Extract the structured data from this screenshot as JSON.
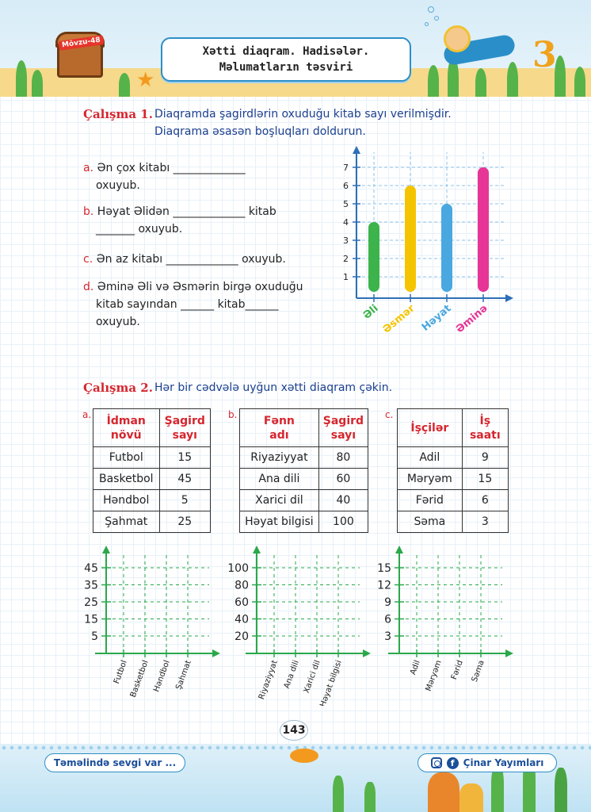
{
  "header": {
    "topic_tag": "Mövzu-48",
    "title_line1": "Xətti diaqram. Hadisələr.",
    "title_line2": "Məlumatların təsviri"
  },
  "exercise1": {
    "title": "Çalışma 1.",
    "text_line1": "Diaqramda şagirdlərin oxuduğu kitab sayı verilmişdir.",
    "text_line2": "Diaqrama əsasən boşluqları doldurun.",
    "questions": [
      {
        "letter": "a.",
        "line1": "Ən çox kitabı _____________",
        "line2": "oxuyub."
      },
      {
        "letter": "b.",
        "line1": "Həyat Əlidən _____________ kitab",
        "line2": "_______ oxuyub."
      },
      {
        "letter": "c.",
        "line1": "Ən az kitabı _____________ oxuyub.",
        "line2": ""
      },
      {
        "letter": "d.",
        "line1": "Əminə Əli və Əsmərin birgə oxuduğu",
        "line2": "kitab sayından ______ kitab______",
        "line3": "oxuyub."
      }
    ]
  },
  "chart_data": {
    "type": "bar",
    "categories": [
      "Əli",
      "Əsmər",
      "Həyat",
      "Əminə"
    ],
    "values": [
      4,
      6,
      5,
      7
    ],
    "colors": [
      "#3cb44b",
      "#f5c400",
      "#4aa8e0",
      "#e63597"
    ],
    "yticks": [
      "1",
      "2",
      "3",
      "4",
      "5",
      "6",
      "7"
    ],
    "ylim": [
      0,
      7
    ],
    "grid": true
  },
  "exercise2": {
    "title": "Çalışma 2.",
    "text": "Hər bir cədvələ uyğun xətti diaqram çəkin.",
    "tables": [
      {
        "label": "a.",
        "h1a": "İdman",
        "h1b": "növü",
        "h2a": "Şagird",
        "h2b": "sayı",
        "rows": [
          [
            "Futbol",
            "15"
          ],
          [
            "Basketbol",
            "45"
          ],
          [
            "Həndbol",
            "5"
          ],
          [
            "Şahmat",
            "25"
          ]
        ]
      },
      {
        "label": "b.",
        "h1a": "Fənn",
        "h1b": "adı",
        "h2a": "Şagird",
        "h2b": "sayı",
        "rows": [
          [
            "Riyaziyyat",
            "80"
          ],
          [
            "Ana dili",
            "60"
          ],
          [
            "Xarici dil",
            "40"
          ],
          [
            "Həyat bilgisi",
            "100"
          ]
        ]
      },
      {
        "label": "c.",
        "h1a": "İşçilər",
        "h1b": "",
        "h2a": "İş",
        "h2b": "saatı",
        "rows": [
          [
            "Adil",
            "9"
          ],
          [
            "Məryəm",
            "15"
          ],
          [
            "Fərid",
            "6"
          ],
          [
            "Səma",
            "3"
          ]
        ]
      }
    ],
    "blank_charts": [
      {
        "yticks": [
          "5",
          "15",
          "25",
          "35",
          "45"
        ],
        "xlabels": [
          "Futbol",
          "Basketbol",
          "Həndbol",
          "Şahmat"
        ]
      },
      {
        "yticks": [
          "20",
          "40",
          "60",
          "80",
          "100"
        ],
        "xlabels": [
          "Riyaziyyat",
          "Ana dili",
          "Xarici dil",
          "Həyat bilgisi"
        ]
      },
      {
        "yticks": [
          "3",
          "6",
          "9",
          "12",
          "15"
        ],
        "xlabels": [
          "Adil",
          "Məryəm",
          "Fərid",
          "Səma"
        ]
      }
    ]
  },
  "footer": {
    "page_number": "143",
    "slogan": "Təməlində sevgi var ...",
    "publisher": "Çinar Yayımları",
    "icons": [
      "instagram-icon",
      "facebook-icon"
    ]
  }
}
